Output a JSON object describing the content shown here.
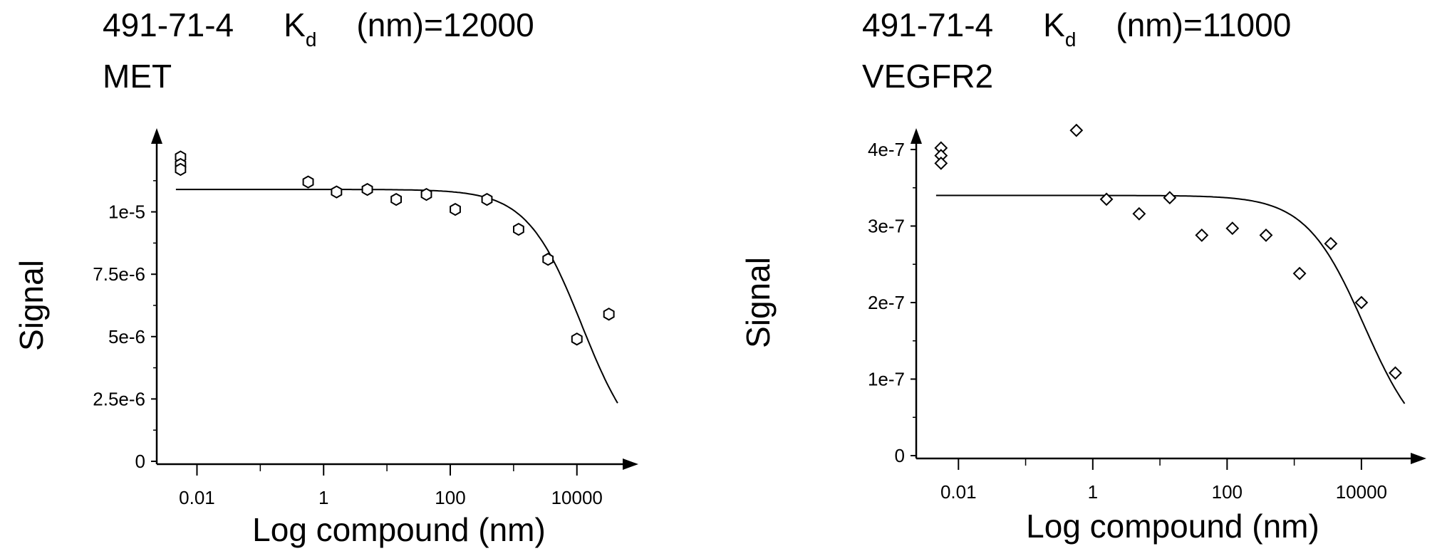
{
  "chart_data": [
    {
      "type": "scatter",
      "compound": "491-71-4",
      "kd_symbol": "K",
      "kd_subscript": "d",
      "kd_text": "(nm)=12000",
      "target": "MET",
      "xlabel": "Log compound (nm)",
      "ylabel": "Signal",
      "x_scale": "log",
      "xlim": [
        0.003,
        80000
      ],
      "ylim": [
        0,
        1.25e-05
      ],
      "x_ticks": [
        {
          "value": 0.01,
          "label": "0.01"
        },
        {
          "value": 1,
          "label": "1"
        },
        {
          "value": 100,
          "label": "100"
        },
        {
          "value": 10000,
          "label": "10000"
        }
      ],
      "y_ticks": [
        {
          "value": 0,
          "label": "0"
        },
        {
          "value": 2.5e-06,
          "label": "2.5e-6"
        },
        {
          "value": 5e-06,
          "label": "5e-6"
        },
        {
          "value": 7.5e-06,
          "label": "7.5e-6"
        },
        {
          "value": 1e-05,
          "label": "1e-5"
        }
      ],
      "points": [
        {
          "x": 0.0055,
          "y": 1.22e-05
        },
        {
          "x": 0.0055,
          "y": 1.19e-05
        },
        {
          "x": 0.0055,
          "y": 1.17e-05
        },
        {
          "x": 0.57,
          "y": 1.12e-05
        },
        {
          "x": 1.6,
          "y": 1.08e-05
        },
        {
          "x": 4.9,
          "y": 1.09e-05
        },
        {
          "x": 14,
          "y": 1.05e-05
        },
        {
          "x": 42,
          "y": 1.07e-05
        },
        {
          "x": 120,
          "y": 1.01e-05
        },
        {
          "x": 380,
          "y": 1.05e-05
        },
        {
          "x": 1200,
          "y": 9.3e-06
        },
        {
          "x": 3500,
          "y": 8.1e-06
        },
        {
          "x": 10000,
          "y": 4.9e-06
        },
        {
          "x": 32000,
          "y": 5.9e-06
        }
      ],
      "fit": {
        "top": 1.09e-05,
        "kd": 12000
      }
    },
    {
      "type": "scatter",
      "compound": "491-71-4",
      "kd_symbol": "K",
      "kd_subscript": "d",
      "kd_text": "(nm)=11000",
      "target": "VEGFR2",
      "xlabel": "Log compound (nm)",
      "ylabel": "Signal",
      "x_scale": "log",
      "xlim": [
        0.003,
        80000
      ],
      "ylim": [
        0,
        4e-07
      ],
      "x_ticks": [
        {
          "value": 0.01,
          "label": "0.01"
        },
        {
          "value": 1,
          "label": "1"
        },
        {
          "value": 100,
          "label": "100"
        },
        {
          "value": 10000,
          "label": "10000"
        }
      ],
      "y_ticks": [
        {
          "value": 0,
          "label": "0"
        },
        {
          "value": 1e-07,
          "label": "1e-7"
        },
        {
          "value": 2e-07,
          "label": "2e-7"
        },
        {
          "value": 3e-07,
          "label": "3e-7"
        },
        {
          "value": 4e-07,
          "label": "4e-7"
        }
      ],
      "points": [
        {
          "x": 0.0055,
          "y": 4.02e-07
        },
        {
          "x": 0.0055,
          "y": 3.92e-07
        },
        {
          "x": 0.0055,
          "y": 3.82e-07
        },
        {
          "x": 0.57,
          "y": 4.25e-07
        },
        {
          "x": 1.6,
          "y": 3.35e-07
        },
        {
          "x": 4.9,
          "y": 3.16e-07
        },
        {
          "x": 14,
          "y": 3.37e-07
        },
        {
          "x": 42,
          "y": 2.88e-07
        },
        {
          "x": 120,
          "y": 2.97e-07
        },
        {
          "x": 380,
          "y": 2.88e-07
        },
        {
          "x": 1200,
          "y": 2.38e-07
        },
        {
          "x": 3500,
          "y": 2.77e-07
        },
        {
          "x": 10000,
          "y": 2e-07
        },
        {
          "x": 32000,
          "y": 1.08e-07
        }
      ],
      "fit": {
        "top": 3.4e-07,
        "kd": 11000
      }
    }
  ]
}
